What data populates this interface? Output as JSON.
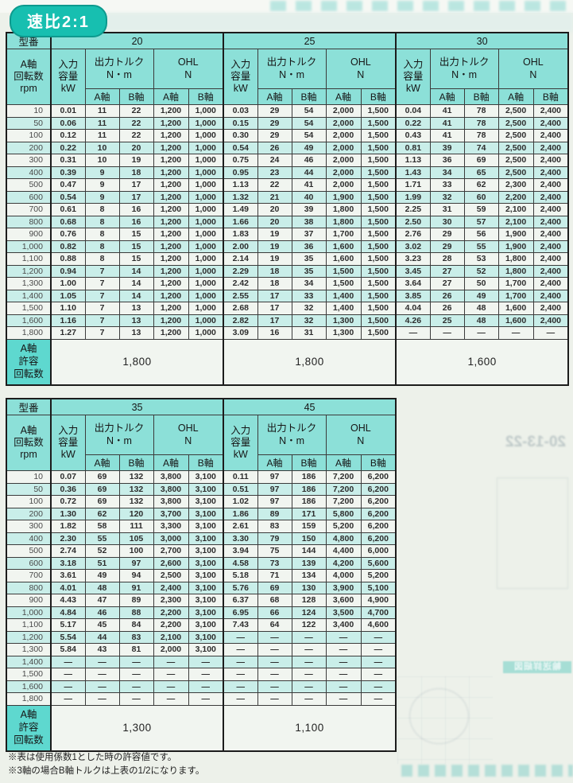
{
  "badge": {
    "label": "速比2:1"
  },
  "labels": {
    "model": "型番",
    "rpm": [
      "A軸",
      "回転数",
      "rpm"
    ],
    "input": [
      "入力",
      "容量",
      "kW"
    ],
    "torque": [
      "出力トルク",
      "N・m"
    ],
    "ohl": [
      "OHL",
      "N"
    ],
    "a_axis": "A軸",
    "b_axis": "B軸",
    "allowable": [
      "A軸",
      "許容",
      "回転数"
    ]
  },
  "tables": [
    {
      "models": [
        "20",
        "25",
        "30"
      ],
      "allowable": [
        "1,800",
        "1,800",
        "1,600"
      ],
      "rows": [
        {
          "rpm": "10",
          "cells": [
            [
              "0.01",
              "11",
              "22",
              "1,200",
              "1,000"
            ],
            [
              "0.03",
              "29",
              "54",
              "2,000",
              "1,500"
            ],
            [
              "0.04",
              "41",
              "78",
              "2,500",
              "2,400"
            ]
          ]
        },
        {
          "rpm": "50",
          "cells": [
            [
              "0.06",
              "11",
              "22",
              "1,200",
              "1,000"
            ],
            [
              "0.15",
              "29",
              "54",
              "2,000",
              "1,500"
            ],
            [
              "0.22",
              "41",
              "78",
              "2,500",
              "2,400"
            ]
          ]
        },
        {
          "rpm": "100",
          "cells": [
            [
              "0.12",
              "11",
              "22",
              "1,200",
              "1,000"
            ],
            [
              "0.30",
              "29",
              "54",
              "2,000",
              "1,500"
            ],
            [
              "0.43",
              "41",
              "78",
              "2,500",
              "2,400"
            ]
          ]
        },
        {
          "rpm": "200",
          "cells": [
            [
              "0.22",
              "10",
              "20",
              "1,200",
              "1,000"
            ],
            [
              "0.54",
              "26",
              "49",
              "2,000",
              "1,500"
            ],
            [
              "0.81",
              "39",
              "74",
              "2,500",
              "2,400"
            ]
          ]
        },
        {
          "rpm": "300",
          "cells": [
            [
              "0.31",
              "10",
              "19",
              "1,200",
              "1,000"
            ],
            [
              "0.75",
              "24",
              "46",
              "2,000",
              "1,500"
            ],
            [
              "1.13",
              "36",
              "69",
              "2,500",
              "2,400"
            ]
          ]
        },
        {
          "rpm": "400",
          "cells": [
            [
              "0.39",
              "9",
              "18",
              "1,200",
              "1,000"
            ],
            [
              "0.95",
              "23",
              "44",
              "2,000",
              "1,500"
            ],
            [
              "1.43",
              "34",
              "65",
              "2,500",
              "2,400"
            ]
          ]
        },
        {
          "rpm": "500",
          "cells": [
            [
              "0.47",
              "9",
              "17",
              "1,200",
              "1,000"
            ],
            [
              "1.13",
              "22",
              "41",
              "2,000",
              "1,500"
            ],
            [
              "1.71",
              "33",
              "62",
              "2,300",
              "2,400"
            ]
          ]
        },
        {
          "rpm": "600",
          "cells": [
            [
              "0.54",
              "9",
              "17",
              "1,200",
              "1,000"
            ],
            [
              "1.32",
              "21",
              "40",
              "1,900",
              "1,500"
            ],
            [
              "1.99",
              "32",
              "60",
              "2,200",
              "2,400"
            ]
          ]
        },
        {
          "rpm": "700",
          "cells": [
            [
              "0.61",
              "8",
              "16",
              "1,200",
              "1,000"
            ],
            [
              "1.49",
              "20",
              "39",
              "1,800",
              "1,500"
            ],
            [
              "2.25",
              "31",
              "59",
              "2,100",
              "2,400"
            ]
          ]
        },
        {
          "rpm": "800",
          "cells": [
            [
              "0.68",
              "8",
              "16",
              "1,200",
              "1,000"
            ],
            [
              "1.66",
              "20",
              "38",
              "1,800",
              "1,500"
            ],
            [
              "2.50",
              "30",
              "57",
              "2,100",
              "2,400"
            ]
          ]
        },
        {
          "rpm": "900",
          "cells": [
            [
              "0.76",
              "8",
              "15",
              "1,200",
              "1,000"
            ],
            [
              "1.83",
              "19",
              "37",
              "1,700",
              "1,500"
            ],
            [
              "2.76",
              "29",
              "56",
              "1,900",
              "2,400"
            ]
          ]
        },
        {
          "rpm": "1,000",
          "cells": [
            [
              "0.82",
              "8",
              "15",
              "1,200",
              "1,000"
            ],
            [
              "2.00",
              "19",
              "36",
              "1,600",
              "1,500"
            ],
            [
              "3.02",
              "29",
              "55",
              "1,900",
              "2,400"
            ]
          ]
        },
        {
          "rpm": "1,100",
          "cells": [
            [
              "0.88",
              "8",
              "15",
              "1,200",
              "1,000"
            ],
            [
              "2.14",
              "19",
              "35",
              "1,600",
              "1,500"
            ],
            [
              "3.23",
              "28",
              "53",
              "1,800",
              "2,400"
            ]
          ]
        },
        {
          "rpm": "1,200",
          "cells": [
            [
              "0.94",
              "7",
              "14",
              "1,200",
              "1,000"
            ],
            [
              "2.29",
              "18",
              "35",
              "1,500",
              "1,500"
            ],
            [
              "3.45",
              "27",
              "52",
              "1,800",
              "2,400"
            ]
          ]
        },
        {
          "rpm": "1,300",
          "cells": [
            [
              "1.00",
              "7",
              "14",
              "1,200",
              "1,000"
            ],
            [
              "2.42",
              "18",
              "34",
              "1,500",
              "1,500"
            ],
            [
              "3.64",
              "27",
              "50",
              "1,700",
              "2,400"
            ]
          ]
        },
        {
          "rpm": "1,400",
          "cells": [
            [
              "1.05",
              "7",
              "14",
              "1,200",
              "1,000"
            ],
            [
              "2.55",
              "17",
              "33",
              "1,400",
              "1,500"
            ],
            [
              "3.85",
              "26",
              "49",
              "1,700",
              "2,400"
            ]
          ]
        },
        {
          "rpm": "1,500",
          "cells": [
            [
              "1.10",
              "7",
              "13",
              "1,200",
              "1,000"
            ],
            [
              "2.68",
              "17",
              "32",
              "1,400",
              "1,500"
            ],
            [
              "4.04",
              "26",
              "48",
              "1,600",
              "2,400"
            ]
          ]
        },
        {
          "rpm": "1,600",
          "cells": [
            [
              "1.16",
              "7",
              "13",
              "1,200",
              "1,000"
            ],
            [
              "2.82",
              "17",
              "32",
              "1,300",
              "1,500"
            ],
            [
              "4.26",
              "25",
              "48",
              "1,600",
              "2,400"
            ]
          ]
        },
        {
          "rpm": "1,800",
          "cells": [
            [
              "1.27",
              "7",
              "13",
              "1,200",
              "1,000"
            ],
            [
              "3.09",
              "16",
              "31",
              "1,300",
              "1,500"
            ],
            [
              "—",
              "—",
              "—",
              "—",
              "—"
            ]
          ]
        }
      ]
    },
    {
      "models": [
        "35",
        "45"
      ],
      "allowable": [
        "1,300",
        "1,100"
      ],
      "rows": [
        {
          "rpm": "10",
          "cells": [
            [
              "0.07",
              "69",
              "132",
              "3,800",
              "3,100"
            ],
            [
              "0.11",
              "97",
              "186",
              "7,200",
              "6,200"
            ]
          ]
        },
        {
          "rpm": "50",
          "cells": [
            [
              "0.36",
              "69",
              "132",
              "3,800",
              "3,100"
            ],
            [
              "0.51",
              "97",
              "186",
              "7,200",
              "6,200"
            ]
          ]
        },
        {
          "rpm": "100",
          "cells": [
            [
              "0.72",
              "69",
              "132",
              "3,800",
              "3,100"
            ],
            [
              "1.02",
              "97",
              "186",
              "7,200",
              "6,200"
            ]
          ]
        },
        {
          "rpm": "200",
          "cells": [
            [
              "1.30",
              "62",
              "120",
              "3,700",
              "3,100"
            ],
            [
              "1.86",
              "89",
              "171",
              "5,800",
              "6,200"
            ]
          ]
        },
        {
          "rpm": "300",
          "cells": [
            [
              "1.82",
              "58",
              "111",
              "3,300",
              "3,100"
            ],
            [
              "2.61",
              "83",
              "159",
              "5,200",
              "6,200"
            ]
          ]
        },
        {
          "rpm": "400",
          "cells": [
            [
              "2.30",
              "55",
              "105",
              "3,000",
              "3,100"
            ],
            [
              "3.30",
              "79",
              "150",
              "4,800",
              "6,200"
            ]
          ]
        },
        {
          "rpm": "500",
          "cells": [
            [
              "2.74",
              "52",
              "100",
              "2,700",
              "3,100"
            ],
            [
              "3.94",
              "75",
              "144",
              "4,400",
              "6,000"
            ]
          ]
        },
        {
          "rpm": "600",
          "cells": [
            [
              "3.18",
              "51",
              "97",
              "2,600",
              "3,100"
            ],
            [
              "4.58",
              "73",
              "139",
              "4,200",
              "5,600"
            ]
          ]
        },
        {
          "rpm": "700",
          "cells": [
            [
              "3.61",
              "49",
              "94",
              "2,500",
              "3,100"
            ],
            [
              "5.18",
              "71",
              "134",
              "4,000",
              "5,200"
            ]
          ]
        },
        {
          "rpm": "800",
          "cells": [
            [
              "4.01",
              "48",
              "91",
              "2,400",
              "3,100"
            ],
            [
              "5.76",
              "69",
              "130",
              "3,900",
              "5,100"
            ]
          ]
        },
        {
          "rpm": "900",
          "cells": [
            [
              "4.43",
              "47",
              "89",
              "2,300",
              "3,100"
            ],
            [
              "6.37",
              "68",
              "128",
              "3,600",
              "4,900"
            ]
          ]
        },
        {
          "rpm": "1,000",
          "cells": [
            [
              "4.84",
              "46",
              "88",
              "2,200",
              "3,100"
            ],
            [
              "6.95",
              "66",
              "124",
              "3,500",
              "4,700"
            ]
          ]
        },
        {
          "rpm": "1,100",
          "cells": [
            [
              "5.17",
              "45",
              "84",
              "2,200",
              "3,100"
            ],
            [
              "7.43",
              "64",
              "122",
              "3,400",
              "4,600"
            ]
          ]
        },
        {
          "rpm": "1,200",
          "cells": [
            [
              "5.54",
              "44",
              "83",
              "2,100",
              "3,100"
            ],
            [
              "—",
              "—",
              "—",
              "—",
              "—"
            ]
          ]
        },
        {
          "rpm": "1,300",
          "cells": [
            [
              "5.84",
              "43",
              "81",
              "2,000",
              "3,100"
            ],
            [
              "—",
              "—",
              "—",
              "—",
              "—"
            ]
          ]
        },
        {
          "rpm": "1,400",
          "cells": [
            [
              "—",
              "—",
              "—",
              "—",
              "—"
            ],
            [
              "—",
              "—",
              "—",
              "—",
              "—"
            ]
          ]
        },
        {
          "rpm": "1,500",
          "cells": [
            [
              "—",
              "—",
              "—",
              "—",
              "—"
            ],
            [
              "—",
              "—",
              "—",
              "—",
              "—"
            ]
          ]
        },
        {
          "rpm": "1,600",
          "cells": [
            [
              "—",
              "—",
              "—",
              "—",
              "—"
            ],
            [
              "—",
              "—",
              "—",
              "—",
              "—"
            ]
          ]
        },
        {
          "rpm": "1,800",
          "cells": [
            [
              "—",
              "—",
              "—",
              "—",
              "—"
            ],
            [
              "—",
              "—",
              "—",
              "—",
              "—"
            ]
          ]
        }
      ]
    }
  ],
  "footnotes": [
    "※表は使用係数1とした時の許容値です。",
    "※3軸の場合B軸トルクは上表の1/2になります。"
  ],
  "bleedthrough": {
    "page_ref": "20-13-22",
    "box_label": "輸送詳細図"
  },
  "colors": {
    "accent_teal": "#17bfb0",
    "header_teal": "#8ce0d8",
    "stripe_cyan": "#c9eee9",
    "summary_teal": "#5ed8cf",
    "page_bg": "#edf1ea"
  }
}
